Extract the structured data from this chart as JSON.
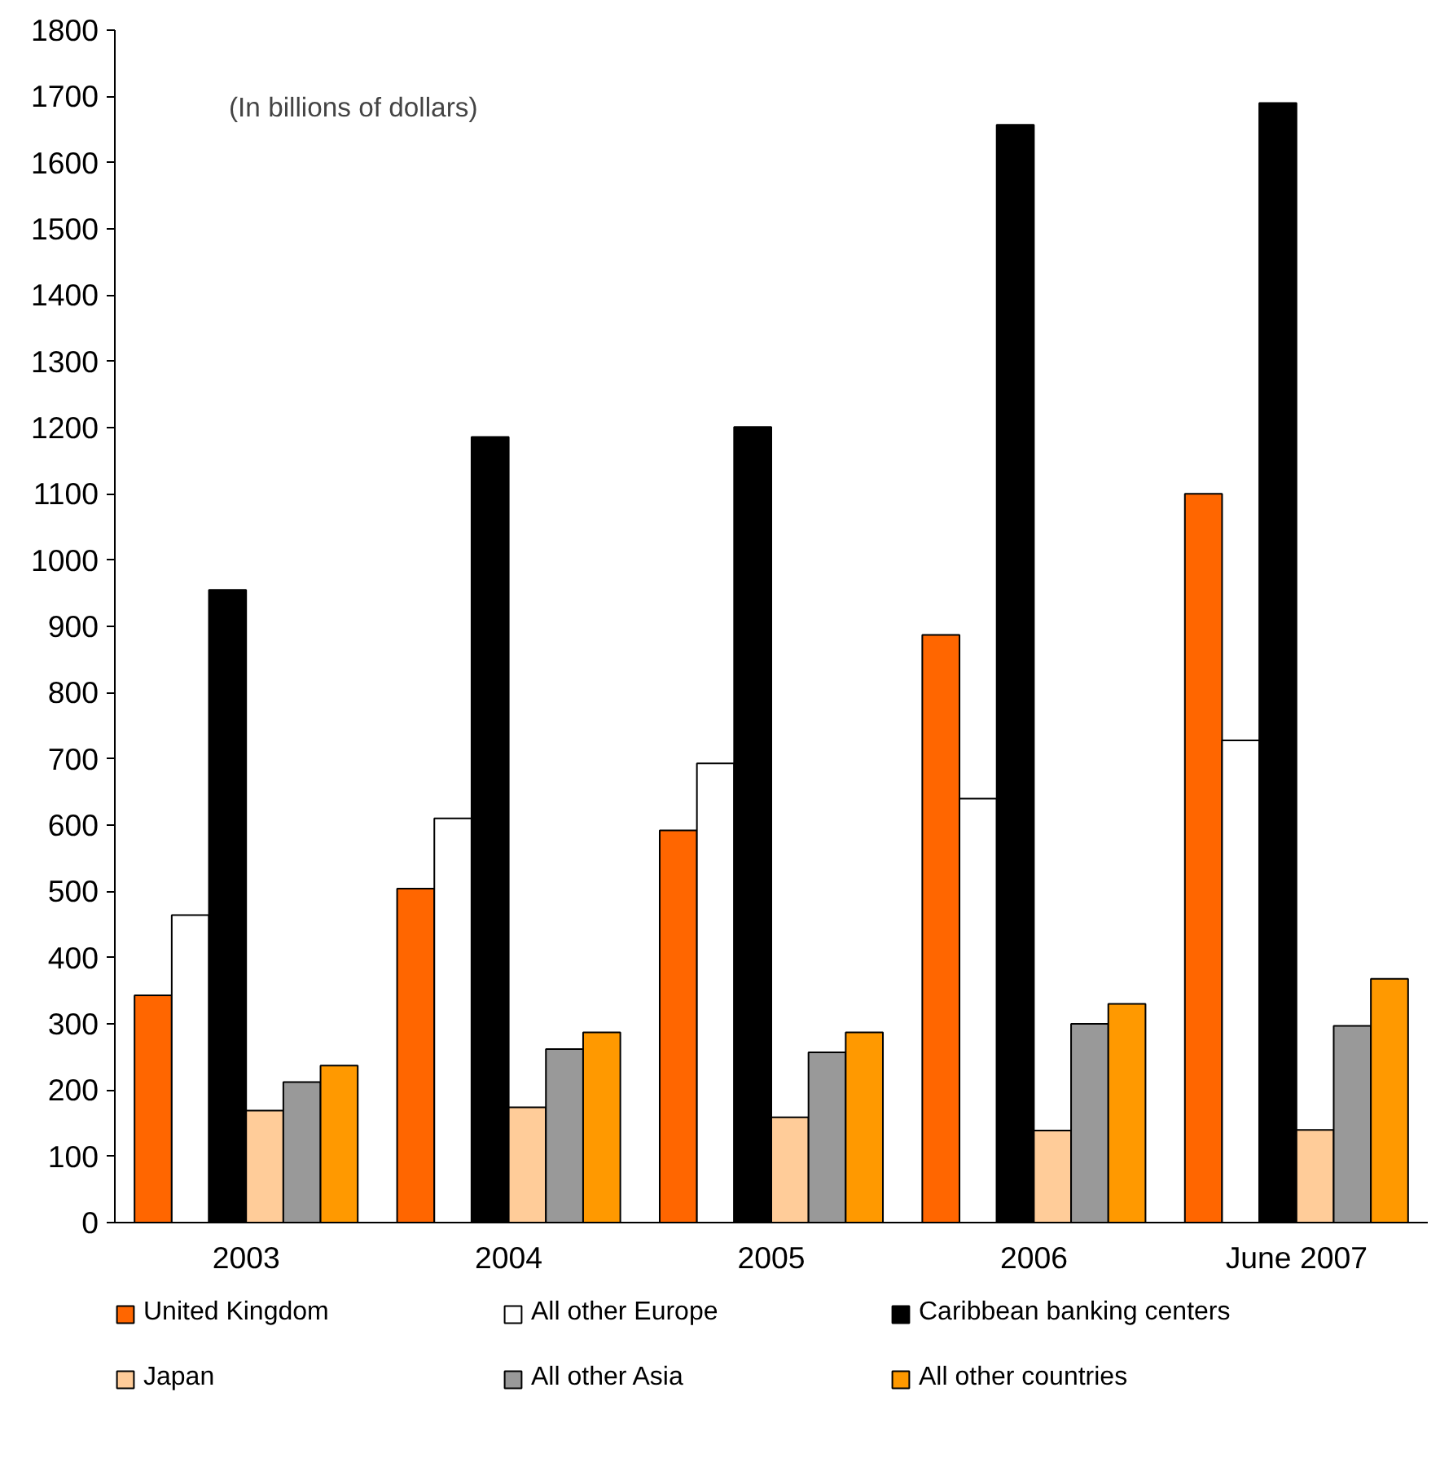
{
  "chart_data": {
    "type": "bar",
    "categories": [
      "2003",
      "2004",
      "2005",
      "2006",
      "June 2007"
    ],
    "series": [
      {
        "name": "United Kingdom",
        "color": "#ff6600",
        "values": [
          343,
          504,
          592,
          887,
          1100
        ]
      },
      {
        "name": "All other Europe",
        "color": "#ffffff",
        "values": [
          464,
          610,
          693,
          640,
          728
        ]
      },
      {
        "name": "Caribbean banking centers",
        "color": "#000000",
        "values": [
          955,
          1186,
          1201,
          1657,
          1690
        ]
      },
      {
        "name": "Japan",
        "color": "#ffcc99",
        "values": [
          169,
          174,
          159,
          139,
          140
        ]
      },
      {
        "name": "All other Asia",
        "color": "#999999",
        "values": [
          212,
          262,
          257,
          300,
          297
        ]
      },
      {
        "name": "All other countries",
        "color": "#ff9900",
        "values": [
          237,
          287,
          287,
          330,
          368
        ]
      }
    ],
    "ylim": [
      0,
      1800
    ],
    "yticks": [
      0,
      100,
      200,
      300,
      400,
      500,
      600,
      700,
      800,
      900,
      1000,
      1100,
      1200,
      1300,
      1400,
      1500,
      1600,
      1700,
      1800
    ],
    "annotations": [
      "(In billions of dollars)"
    ],
    "grid": false,
    "legend": "bottom"
  }
}
